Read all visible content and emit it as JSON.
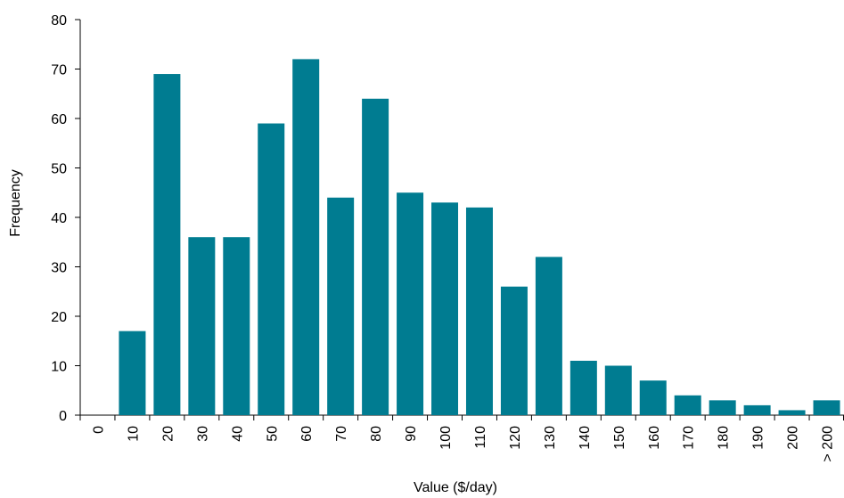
{
  "chart_data": {
    "type": "bar",
    "xlabel": "Value ($/day)",
    "ylabel": "Frequency",
    "ylim": [
      0,
      80
    ],
    "y_ticks": [
      "0",
      "10",
      "20",
      "30",
      "40",
      "50",
      "60",
      "70",
      "80"
    ],
    "categories": [
      "0",
      "10",
      "20",
      "30",
      "40",
      "50",
      "60",
      "70",
      "80",
      "90",
      "100",
      "110",
      "120",
      "130",
      "140",
      "150",
      "160",
      "170",
      "180",
      "190",
      "200",
      "> 200"
    ],
    "values": [
      0,
      17,
      69,
      36,
      36,
      59,
      72,
      44,
      64,
      45,
      43,
      42,
      26,
      32,
      11,
      10,
      7,
      4,
      3,
      2,
      1,
      3
    ],
    "bar_color": "#007C91",
    "grid": false,
    "legend": "none"
  }
}
